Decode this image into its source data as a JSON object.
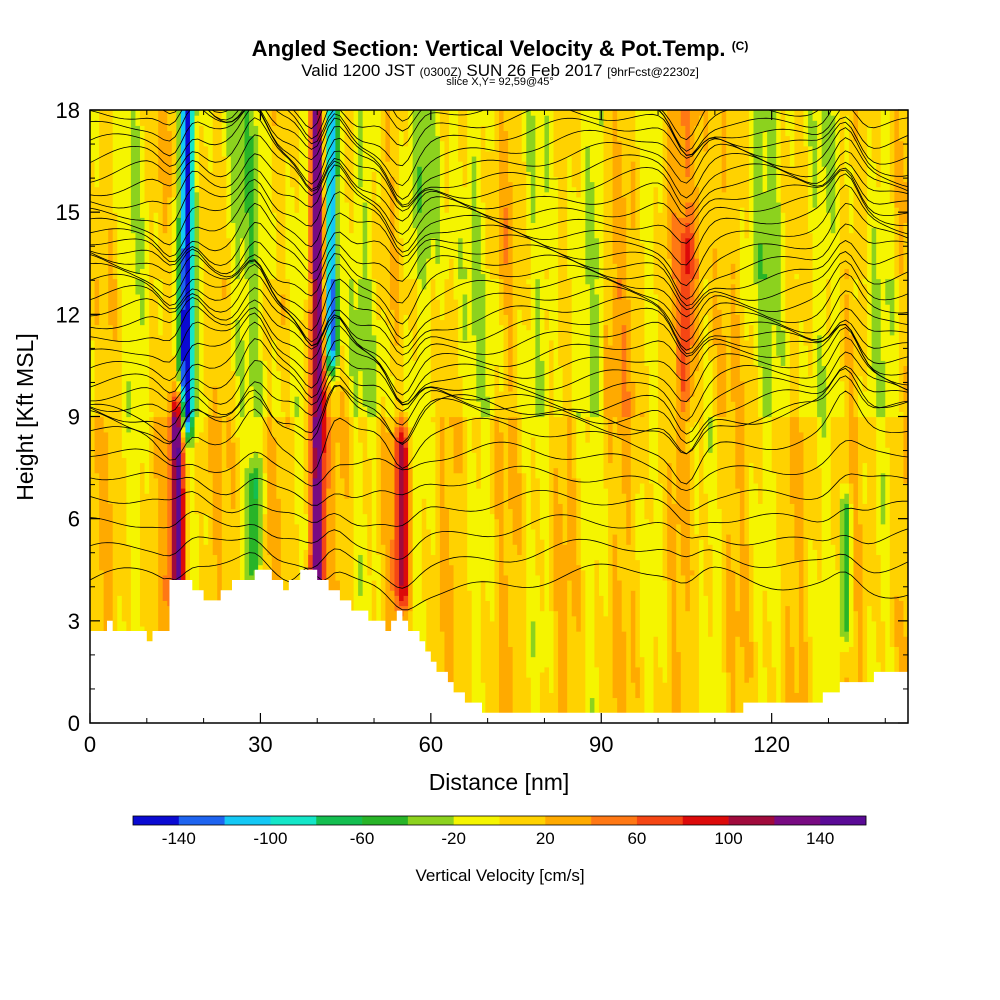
{
  "header": {
    "title": "Angled Section: Vertical Velocity & Pot.Temp.",
    "title_mark": "(C)",
    "valid_prefix": "Valid 1200 JST",
    "valid_utc": "(0300Z)",
    "valid_date": "SUN 26 Feb 2017",
    "forecast": "[9hrFcst@2230z]",
    "slice": "slice X,Y= 92,59@45°"
  },
  "chart_data": {
    "type": "heatmap",
    "xlabel": "Distance [nm]",
    "ylabel": "Height [Kft MSL]",
    "xlim": [
      0,
      144
    ],
    "ylim": [
      0,
      18
    ],
    "x_ticks": [
      "0",
      "30",
      "60",
      "90",
      "120"
    ],
    "y_ticks": [
      "0",
      "3",
      "6",
      "9",
      "12",
      "15",
      "18"
    ],
    "colorbar": {
      "title": "Vertical Velocity [cm/s]",
      "ticks": [
        "-140",
        "-100",
        "-60",
        "-20",
        "20",
        "60",
        "100",
        "140"
      ],
      "levels": [
        -160,
        -140,
        -120,
        -100,
        -80,
        -60,
        -40,
        -20,
        0,
        20,
        40,
        60,
        80,
        100,
        120,
        140,
        160
      ],
      "colors": [
        "#0a0ad2",
        "#1e64f0",
        "#14c8f5",
        "#14e6c8",
        "#14be50",
        "#28b428",
        "#8cd21e",
        "#f5f500",
        "#ffd200",
        "#ffaa00",
        "#ff7814",
        "#f54614",
        "#dc0a0a",
        "#a00a3c",
        "#780a82",
        "#5a0a96"
      ]
    },
    "terrain_kft": [
      [
        0,
        2.6
      ],
      [
        3,
        2.9
      ],
      [
        10,
        2.5
      ],
      [
        13,
        2.8
      ],
      [
        14,
        4.2
      ],
      [
        18,
        4.0
      ],
      [
        20,
        3.5
      ],
      [
        26,
        4.2
      ],
      [
        31,
        4.5
      ],
      [
        34,
        4.0
      ],
      [
        36,
        4.2
      ],
      [
        38,
        4.5
      ],
      [
        42,
        4.0
      ],
      [
        46,
        3.4
      ],
      [
        50,
        3.0
      ],
      [
        52,
        2.8
      ],
      [
        54,
        3.2
      ],
      [
        57,
        2.6
      ],
      [
        60,
        1.7
      ],
      [
        64,
        1.0
      ],
      [
        67,
        0.6
      ],
      [
        70,
        0.3
      ],
      [
        114,
        0.3
      ],
      [
        116,
        0.6
      ],
      [
        128,
        0.7
      ],
      [
        131,
        1.0
      ],
      [
        138,
        1.4
      ],
      [
        144,
        1.4
      ]
    ],
    "updrafts": [
      {
        "x": 15.5,
        "z_min": 4.2,
        "z_max": 9.0,
        "w": 150
      },
      {
        "x": 40,
        "z_min": 4.5,
        "z_max": 18,
        "w": 150
      },
      {
        "x": 55,
        "z_min": 4.0,
        "z_max": 8.0,
        "w": 100
      },
      {
        "x": 105,
        "z_min": 10,
        "z_max": 14,
        "w": 60
      }
    ],
    "downdrafts": [
      {
        "x": 17,
        "z_min": 9,
        "z_max": 18,
        "w": -140
      },
      {
        "x": 42.5,
        "z_min": 11,
        "z_max": 18,
        "w": -130
      },
      {
        "x": 29,
        "z_min": 5,
        "z_max": 7,
        "w": -60
      },
      {
        "x": 133,
        "z_min": 3,
        "z_max": 6,
        "w": -60
      }
    ]
  }
}
